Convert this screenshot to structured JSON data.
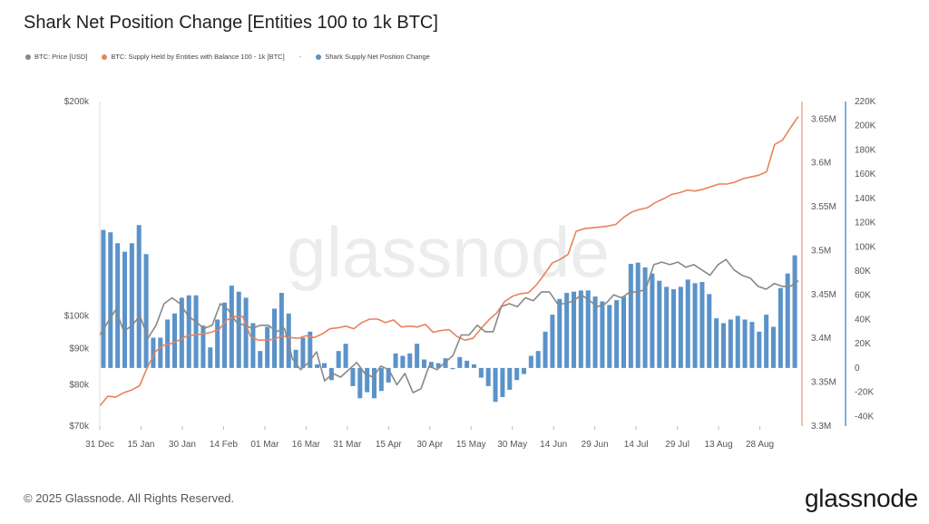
{
  "title": "Shark Net Position Change [Entities 100 to 1k BTC]",
  "legend": [
    {
      "label": "BTC: Price [USD]",
      "color": "#888888"
    },
    {
      "label": "BTC: Supply Held by Entities with Balance 100 - 1k [BTC]",
      "color": "#e8825c"
    },
    {
      "label": "Shark Supply Net Position Change",
      "color": "#5b93c9"
    }
  ],
  "legend_separator": "-",
  "footer": "© 2025 Glassnode. All Rights Reserved.",
  "brand": "glassnode",
  "watermark": "glassnode",
  "chart_data": {
    "type": "line",
    "x_tick_labels": [
      "31 Dec",
      "15 Jan",
      "30 Jan",
      "14 Feb",
      "01 Mar",
      "16 Mar",
      "31 Mar",
      "15 Apr",
      "30 Apr",
      "15 May",
      "30 May",
      "14 Jun",
      "29 Jun",
      "14 Jul",
      "29 Jul",
      "13 Aug",
      "28 Aug"
    ],
    "axes": {
      "price": {
        "scale": "log",
        "range": [
          70000,
          200000
        ],
        "ticks": [
          "$70k",
          "$80k",
          "$90k",
          "$100k",
          "$200k"
        ],
        "tick_values": [
          70000,
          80000,
          90000,
          100000,
          200000
        ],
        "color": "#888888"
      },
      "supply": {
        "range": [
          3300000,
          3670000
        ],
        "ticks": [
          "3.3M",
          "3.35M",
          "3.4M",
          "3.45M",
          "3.5M",
          "3.55M",
          "3.6M",
          "3.65M"
        ],
        "tick_values": [
          3300000,
          3350000,
          3400000,
          3450000,
          3500000,
          3550000,
          3600000,
          3650000
        ],
        "color": "#e8825c"
      },
      "net_change": {
        "range": [
          -48000,
          220000
        ],
        "ticks": [
          "-40K",
          "-20K",
          "0",
          "20K",
          "40K",
          "60K",
          "80K",
          "100K",
          "120K",
          "140K",
          "160K",
          "180K",
          "200K",
          "220K"
        ],
        "tick_values": [
          -40000,
          -20000,
          0,
          20000,
          40000,
          60000,
          80000,
          100000,
          120000,
          140000,
          160000,
          180000,
          200000,
          220000
        ],
        "color": "#5b93c9"
      }
    },
    "series": [
      {
        "name": "BTC: Price [USD]",
        "type": "line",
        "axis": "price",
        "color": "#888888",
        "values": [
          94000,
          98000,
          102000,
          95000,
          97000,
          100000,
          93000,
          97000,
          104000,
          106000,
          104000,
          100000,
          98000,
          96000,
          97000,
          104000,
          102000,
          98000,
          97000,
          96000,
          97000,
          97000,
          95000,
          96000,
          87000,
          84000,
          86000,
          89000,
          81000,
          83000,
          82000,
          84000,
          86000,
          83000,
          82000,
          85000,
          84000,
          80000,
          83000,
          78000,
          79000,
          85000,
          84000,
          86000,
          88000,
          94000,
          94000,
          97000,
          95000,
          95000,
          103000,
          104000,
          103000,
          106000,
          105000,
          108000,
          108000,
          104000,
          104000,
          105000,
          107000,
          105000,
          103000,
          104000,
          107000,
          106000,
          108000,
          108000,
          109000,
          118000,
          119000,
          118000,
          119000,
          117000,
          118000,
          116000,
          114000,
          118000,
          120000,
          116000,
          114000,
          113000,
          110000,
          109000,
          111000,
          110000,
          110000,
          112000
        ]
      },
      {
        "name": "BTC: Supply Held by Entities with Balance 100 - 1k [BTC]",
        "type": "line",
        "axis": "supply",
        "color": "#e8825c",
        "values": [
          3323000,
          3334000,
          3333000,
          3338000,
          3341000,
          3346000,
          3367000,
          3385000,
          3392000,
          3394000,
          3398000,
          3403000,
          3404000,
          3405000,
          3407000,
          3410000,
          3421000,
          3425000,
          3425000,
          3402000,
          3398000,
          3398000,
          3399000,
          3403000,
          3401000,
          3400000,
          3403000,
          3401000,
          3405000,
          3411000,
          3412000,
          3414000,
          3411000,
          3418000,
          3422000,
          3422000,
          3418000,
          3421000,
          3413000,
          3414000,
          3413000,
          3416000,
          3407000,
          3409000,
          3410000,
          3402000,
          3398000,
          3400000,
          3411000,
          3421000,
          3429000,
          3442000,
          3448000,
          3451000,
          3452000,
          3461000,
          3473000,
          3486000,
          3490000,
          3496000,
          3522000,
          3525000,
          3526000,
          3527000,
          3528000,
          3530000,
          3538000,
          3544000,
          3547000,
          3549000,
          3555000,
          3559000,
          3564000,
          3566000,
          3569000,
          3568000,
          3570000,
          3573000,
          3576000,
          3576000,
          3578000,
          3582000,
          3584000,
          3586000,
          3590000,
          3621000,
          3626000,
          3640000,
          3653000
        ]
      },
      {
        "name": "Shark Supply Net Position Change",
        "type": "bar",
        "axis": "net_change",
        "color": "#5b93c9",
        "values": [
          114000,
          112000,
          103000,
          96000,
          103000,
          118000,
          94000,
          25000,
          25000,
          40000,
          45000,
          58000,
          60000,
          60000,
          35000,
          17000,
          40000,
          54000,
          68000,
          63000,
          58000,
          37000,
          14000,
          34000,
          49000,
          62000,
          45000,
          15000,
          25000,
          30000,
          3000,
          4000,
          -10000,
          14000,
          20000,
          -15000,
          -25000,
          -20000,
          -25000,
          -19000,
          -12000,
          12000,
          10000,
          12000,
          20000,
          7000,
          5000,
          4000,
          8000,
          -1000,
          9000,
          6000,
          3000,
          -8000,
          -15000,
          -28000,
          -24000,
          -18000,
          -10000,
          -5000,
          10000,
          14000,
          30000,
          44000,
          57000,
          62000,
          63000,
          64000,
          64000,
          59000,
          55000,
          52000,
          56000,
          59000,
          86000,
          87000,
          83000,
          78000,
          72000,
          67000,
          65000,
          67000,
          73000,
          70000,
          71000,
          61000,
          41000,
          37000,
          40000,
          43000,
          40000,
          38000,
          30000,
          44000,
          34000,
          66000,
          78000,
          93000
        ]
      }
    ],
    "grid": false,
    "legend_position": "top-left"
  }
}
